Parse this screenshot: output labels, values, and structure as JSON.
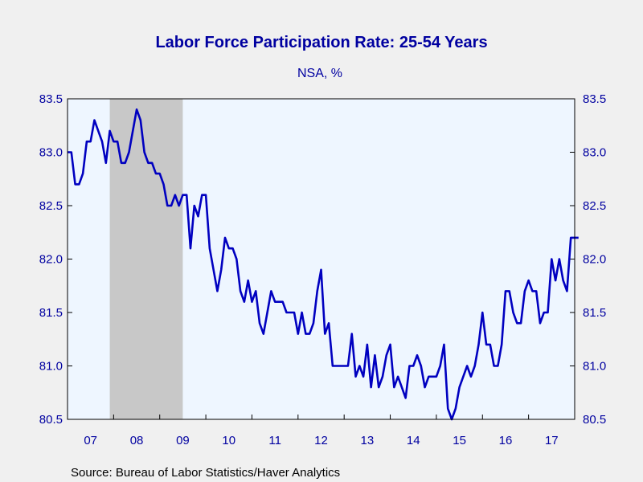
{
  "chart_data": {
    "type": "line",
    "title": "Labor Force Participation Rate: 25-54 Years",
    "subtitle": "NSA, %",
    "source": "Source:  Bureau of Labor Statistics/Haver Analytics",
    "xlabel": "",
    "ylabel": "",
    "start": "2007-01",
    "xlim": [
      "2007-01",
      "2017-12"
    ],
    "ylim": [
      80.5,
      83.5
    ],
    "y_ticks": [
      80.5,
      81.0,
      81.5,
      82.0,
      82.5,
      83.0,
      83.5
    ],
    "y_tick_labels": [
      "80.5",
      "81.0",
      "81.5",
      "82.0",
      "82.5",
      "83.0",
      "83.5"
    ],
    "x_tick_labels": [
      "07",
      "08",
      "09",
      "10",
      "11",
      "12",
      "13",
      "14",
      "15",
      "16",
      "17"
    ],
    "recession": {
      "start": "2007-12",
      "end": "2009-06"
    },
    "grid": false,
    "colors": {
      "line": "#0000c0",
      "plot_bg": "#eef6ff",
      "recession": "#c8c8c8",
      "text": "#0000a0"
    },
    "series": [
      {
        "values": [
          83.0,
          83.0,
          82.7,
          82.7,
          82.8,
          83.1,
          83.1,
          83.3,
          83.2,
          83.1,
          82.9,
          83.2,
          83.1,
          83.1,
          82.9,
          82.9,
          83.0,
          83.2,
          83.4,
          83.3,
          83.0,
          82.9,
          82.9,
          82.8,
          82.8,
          82.7,
          82.5,
          82.5,
          82.6,
          82.5,
          82.6,
          82.6,
          82.1,
          82.5,
          82.4,
          82.6,
          82.6,
          82.1,
          81.9,
          81.7,
          81.9,
          82.2,
          82.1,
          82.1,
          82.0,
          81.7,
          81.6,
          81.8,
          81.6,
          81.7,
          81.4,
          81.3,
          81.5,
          81.7,
          81.6,
          81.6,
          81.6,
          81.5,
          81.5,
          81.5,
          81.3,
          81.5,
          81.3,
          81.3,
          81.4,
          81.7,
          81.9,
          81.3,
          81.4,
          81.0,
          81.0,
          81.0,
          81.0,
          81.0,
          81.3,
          80.9,
          81.0,
          80.9,
          81.2,
          80.8,
          81.1,
          80.8,
          80.9,
          81.1,
          81.2,
          80.8,
          80.9,
          80.8,
          80.7,
          81.0,
          81.0,
          81.1,
          81.0,
          80.8,
          80.9,
          80.9,
          80.9,
          81.0,
          81.2,
          80.6,
          80.5,
          80.6,
          80.8,
          80.9,
          81.0,
          80.9,
          81.0,
          81.2,
          81.5,
          81.2,
          81.2,
          81.0,
          81.0,
          81.2,
          81.7,
          81.7,
          81.5,
          81.4,
          81.4,
          81.7,
          81.8,
          81.7,
          81.7,
          81.4,
          81.5,
          81.5,
          82.0,
          81.8,
          82.0,
          81.8,
          81.7,
          82.2,
          82.2,
          82.2
        ]
      }
    ]
  }
}
